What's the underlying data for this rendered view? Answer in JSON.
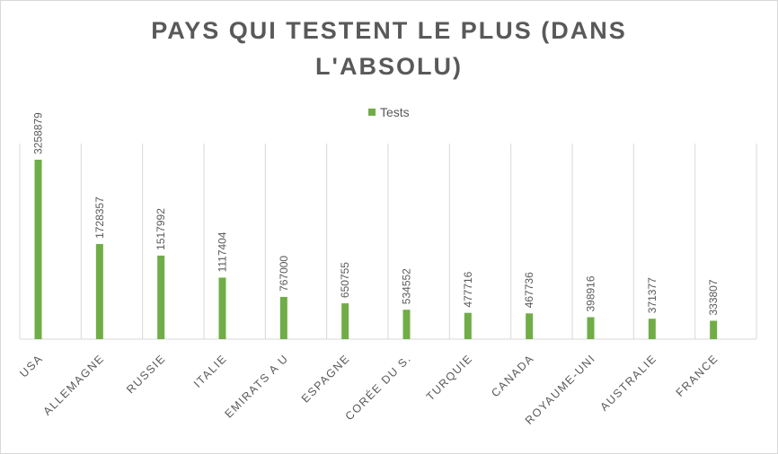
{
  "chart_data": {
    "type": "bar",
    "title": "PAYS QUI TESTENT LE PLUS (DANS L'ABSOLU)",
    "xlabel": "",
    "ylabel": "",
    "legend": {
      "entries": [
        "Tests"
      ],
      "placement": "top"
    },
    "categories": [
      "USA",
      "ALLEMAGNE",
      "RUSSIE",
      "ITALIE",
      "EMIRATS A U",
      "ESPAGNE",
      "CORÉE DU S.",
      "TURQUIE",
      "CANADA",
      "ROYAUME-UNI",
      "AUSTRALIE",
      "FRANCE"
    ],
    "series": [
      {
        "name": "Tests",
        "color": "#70ad47",
        "values": [
          3258879,
          1728357,
          1517992,
          1117404,
          767000,
          650755,
          534552,
          477716,
          467736,
          398916,
          371377,
          333807
        ]
      }
    ],
    "ylim": [
      0,
      3258879
    ],
    "grid": "vertical category separators",
    "data_labels": "rotated above bars"
  }
}
